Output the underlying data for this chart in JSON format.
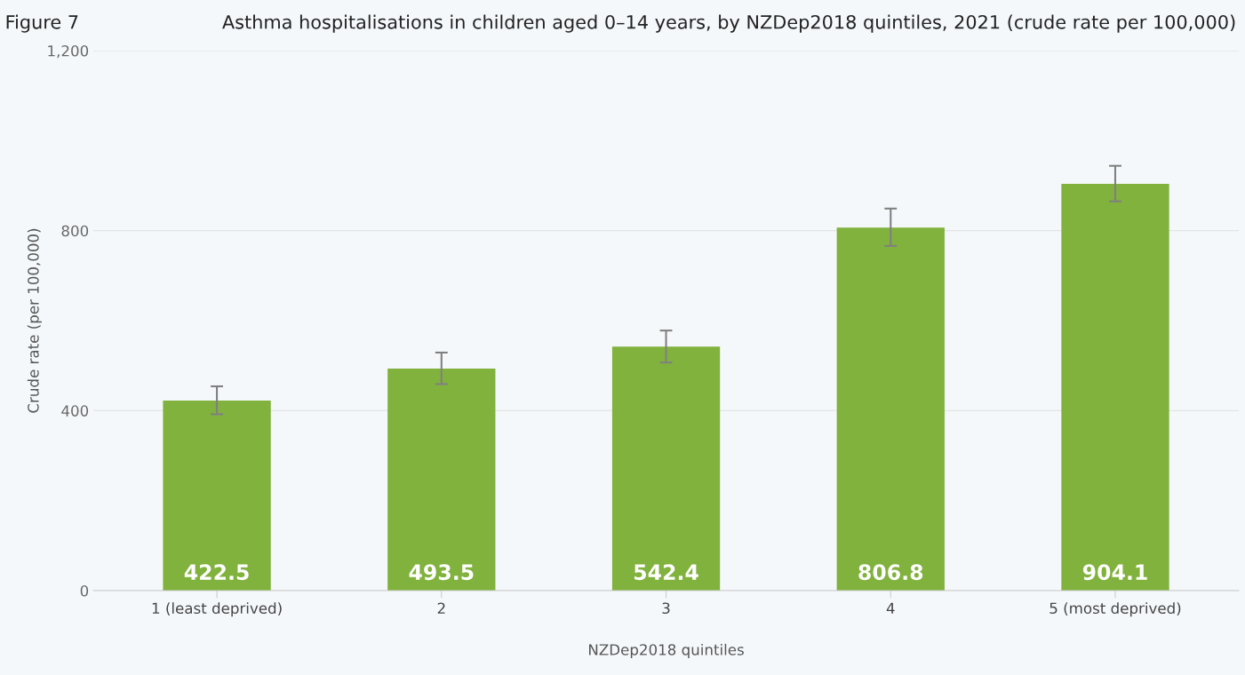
{
  "chart_data": {
    "type": "bar",
    "title": "Asthma hospitalisations in children aged 0–14 years, by NZDep2018 quintiles, 2021 (crude rate per 100,000)",
    "annotations": [
      "Figure 7"
    ],
    "xlabel": "NZDep2018 quintiles",
    "ylabel": "Crude rate (per 100,000)",
    "categories": [
      "1 (least deprived)",
      "2",
      "3",
      "4",
      "5 (most deprived)"
    ],
    "values": [
      422.5,
      493.5,
      542.4,
      806.8,
      904.1
    ],
    "errors": [
      [
        392,
        454
      ],
      [
        459,
        529
      ],
      [
        507,
        578
      ],
      [
        766,
        849
      ],
      [
        865,
        944
      ]
    ],
    "color": "#80b23d",
    "ylim": [
      0,
      1200
    ],
    "yticks": [
      0,
      400,
      800,
      {
        "value": 1200,
        "label": "1,200"
      }
    ],
    "grid": "y",
    "data_labels": true
  }
}
